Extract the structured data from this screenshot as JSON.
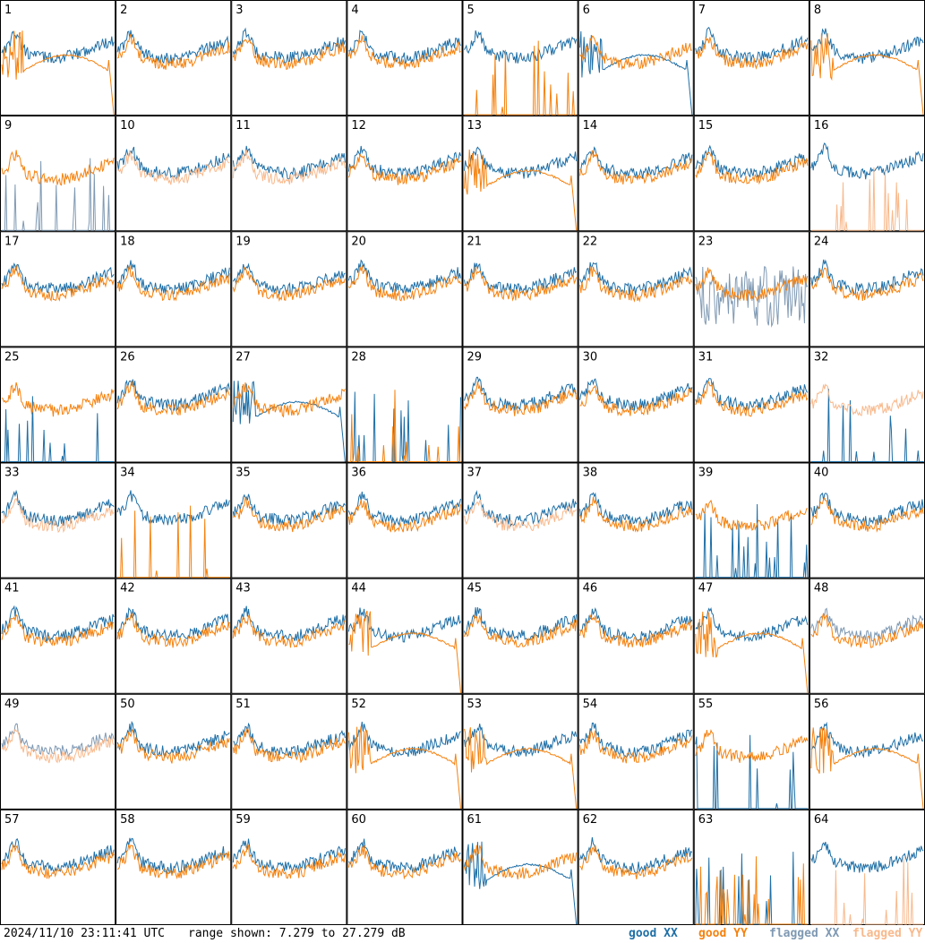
{
  "panels": [
    {
      "num": "1",
      "xx": "good",
      "yy": "good",
      "xx_shape": "ripple",
      "yy_shape": "loss"
    },
    {
      "num": "2",
      "xx": "good",
      "yy": "good",
      "xx_shape": "ripple",
      "yy_shape": "ripple"
    },
    {
      "num": "3",
      "xx": "good",
      "yy": "good",
      "xx_shape": "ripple",
      "yy_shape": "ripple"
    },
    {
      "num": "4",
      "xx": "good",
      "yy": "good",
      "xx_shape": "ripple",
      "yy_shape": "ripple"
    },
    {
      "num": "5",
      "xx": "good",
      "yy": "good",
      "xx_shape": "ripple",
      "yy_shape": "spikes"
    },
    {
      "num": "6",
      "xx": "good",
      "yy": "good",
      "xx_shape": "loss",
      "yy_shape": "ripple"
    },
    {
      "num": "7",
      "xx": "good",
      "yy": "good",
      "xx_shape": "ripple",
      "yy_shape": "ripple"
    },
    {
      "num": "8",
      "xx": "good",
      "yy": "good",
      "xx_shape": "ripple",
      "yy_shape": "loss"
    },
    {
      "num": "9",
      "xx": "flagged",
      "yy": "good",
      "xx_shape": "spikes",
      "yy_shape": "ripple"
    },
    {
      "num": "10",
      "xx": "good",
      "yy": "flagged",
      "xx_shape": "ripple",
      "yy_shape": "ripple"
    },
    {
      "num": "11",
      "xx": "good",
      "yy": "flagged",
      "xx_shape": "ripple",
      "yy_shape": "ripple"
    },
    {
      "num": "12",
      "xx": "good",
      "yy": "good",
      "xx_shape": "ripple",
      "yy_shape": "ripple"
    },
    {
      "num": "13",
      "xx": "good",
      "yy": "good",
      "xx_shape": "ripple",
      "yy_shape": "loss"
    },
    {
      "num": "14",
      "xx": "good",
      "yy": "good",
      "xx_shape": "ripple",
      "yy_shape": "ripple"
    },
    {
      "num": "15",
      "xx": "good",
      "yy": "good",
      "xx_shape": "ripple",
      "yy_shape": "ripple"
    },
    {
      "num": "16",
      "xx": "good",
      "yy": "flagged",
      "xx_shape": "ripple",
      "yy_shape": "spikes"
    },
    {
      "num": "17",
      "xx": "good",
      "yy": "good",
      "xx_shape": "ripple",
      "yy_shape": "ripple"
    },
    {
      "num": "18",
      "xx": "good",
      "yy": "good",
      "xx_shape": "ripple",
      "yy_shape": "ripple"
    },
    {
      "num": "19",
      "xx": "good",
      "yy": "good",
      "xx_shape": "ripple",
      "yy_shape": "ripple"
    },
    {
      "num": "20",
      "xx": "good",
      "yy": "good",
      "xx_shape": "ripple",
      "yy_shape": "ripple"
    },
    {
      "num": "21",
      "xx": "good",
      "yy": "good",
      "xx_shape": "ripple",
      "yy_shape": "ripple"
    },
    {
      "num": "22",
      "xx": "good",
      "yy": "good",
      "xx_shape": "ripple",
      "yy_shape": "ripple"
    },
    {
      "num": "23",
      "xx": "flagged",
      "yy": "good",
      "xx_shape": "noisy",
      "yy_shape": "ripple"
    },
    {
      "num": "24",
      "xx": "good",
      "yy": "good",
      "xx_shape": "ripple",
      "yy_shape": "ripple"
    },
    {
      "num": "25",
      "xx": "good",
      "yy": "good",
      "xx_shape": "spikes",
      "yy_shape": "ripple"
    },
    {
      "num": "26",
      "xx": "good",
      "yy": "good",
      "xx_shape": "ripple",
      "yy_shape": "ripple"
    },
    {
      "num": "27",
      "xx": "good",
      "yy": "good",
      "xx_shape": "loss",
      "yy_shape": "ripple"
    },
    {
      "num": "28",
      "xx": "good",
      "yy": "good",
      "xx_shape": "spikes",
      "yy_shape": "spikes"
    },
    {
      "num": "29",
      "xx": "good",
      "yy": "good",
      "xx_shape": "ripple",
      "yy_shape": "ripple"
    },
    {
      "num": "30",
      "xx": "good",
      "yy": "good",
      "xx_shape": "ripple",
      "yy_shape": "ripple"
    },
    {
      "num": "31",
      "xx": "good",
      "yy": "good",
      "xx_shape": "ripple",
      "yy_shape": "ripple"
    },
    {
      "num": "32",
      "xx": "good",
      "yy": "flagged",
      "xx_shape": "spikes",
      "yy_shape": "ripple"
    },
    {
      "num": "33",
      "xx": "good",
      "yy": "flagged",
      "xx_shape": "ripple",
      "yy_shape": "ripple"
    },
    {
      "num": "34",
      "xx": "good",
      "yy": "good",
      "xx_shape": "ripple",
      "yy_shape": "spikes"
    },
    {
      "num": "35",
      "xx": "good",
      "yy": "good",
      "xx_shape": "ripple",
      "yy_shape": "ripple"
    },
    {
      "num": "36",
      "xx": "good",
      "yy": "good",
      "xx_shape": "ripple",
      "yy_shape": "ripple"
    },
    {
      "num": "37",
      "xx": "good",
      "yy": "flagged",
      "xx_shape": "ripple",
      "yy_shape": "ripple"
    },
    {
      "num": "38",
      "xx": "good",
      "yy": "good",
      "xx_shape": "ripple",
      "yy_shape": "ripple"
    },
    {
      "num": "39",
      "xx": "good",
      "yy": "good",
      "xx_shape": "spikes",
      "yy_shape": "ripple"
    },
    {
      "num": "40",
      "xx": "good",
      "yy": "good",
      "xx_shape": "ripple",
      "yy_shape": "ripple"
    },
    {
      "num": "41",
      "xx": "good",
      "yy": "good",
      "xx_shape": "ripple",
      "yy_shape": "ripple"
    },
    {
      "num": "42",
      "xx": "good",
      "yy": "good",
      "xx_shape": "ripple",
      "yy_shape": "ripple"
    },
    {
      "num": "43",
      "xx": "good",
      "yy": "good",
      "xx_shape": "ripple",
      "yy_shape": "ripple"
    },
    {
      "num": "44",
      "xx": "good",
      "yy": "good",
      "xx_shape": "ripple",
      "yy_shape": "loss"
    },
    {
      "num": "45",
      "xx": "good",
      "yy": "good",
      "xx_shape": "ripple",
      "yy_shape": "ripple"
    },
    {
      "num": "46",
      "xx": "good",
      "yy": "good",
      "xx_shape": "ripple",
      "yy_shape": "ripple"
    },
    {
      "num": "47",
      "xx": "good",
      "yy": "good",
      "xx_shape": "ripple",
      "yy_shape": "loss"
    },
    {
      "num": "48",
      "xx": "flagged",
      "yy": "good",
      "xx_shape": "ripple",
      "yy_shape": "ripple"
    },
    {
      "num": "49",
      "xx": "flagged",
      "yy": "flagged",
      "xx_shape": "ripple",
      "yy_shape": "ripple"
    },
    {
      "num": "50",
      "xx": "good",
      "yy": "good",
      "xx_shape": "ripple",
      "yy_shape": "ripple"
    },
    {
      "num": "51",
      "xx": "good",
      "yy": "good",
      "xx_shape": "ripple",
      "yy_shape": "ripple"
    },
    {
      "num": "52",
      "xx": "good",
      "yy": "good",
      "xx_shape": "ripple",
      "yy_shape": "loss"
    },
    {
      "num": "53",
      "xx": "good",
      "yy": "good",
      "xx_shape": "ripple",
      "yy_shape": "loss"
    },
    {
      "num": "54",
      "xx": "good",
      "yy": "good",
      "xx_shape": "ripple",
      "yy_shape": "ripple"
    },
    {
      "num": "55",
      "xx": "good",
      "yy": "good",
      "xx_shape": "spikes",
      "yy_shape": "ripple"
    },
    {
      "num": "56",
      "xx": "good",
      "yy": "good",
      "xx_shape": "ripple",
      "yy_shape": "loss"
    },
    {
      "num": "57",
      "xx": "good",
      "yy": "good",
      "xx_shape": "ripple",
      "yy_shape": "ripple"
    },
    {
      "num": "58",
      "xx": "good",
      "yy": "good",
      "xx_shape": "ripple",
      "yy_shape": "ripple"
    },
    {
      "num": "59",
      "xx": "good",
      "yy": "good",
      "xx_shape": "ripple",
      "yy_shape": "ripple"
    },
    {
      "num": "60",
      "xx": "good",
      "yy": "good",
      "xx_shape": "ripple",
      "yy_shape": "ripple"
    },
    {
      "num": "61",
      "xx": "good",
      "yy": "good",
      "xx_shape": "loss",
      "yy_shape": "ripple"
    },
    {
      "num": "62",
      "xx": "good",
      "yy": "good",
      "xx_shape": "ripple",
      "yy_shape": "ripple"
    },
    {
      "num": "63",
      "xx": "good",
      "yy": "good",
      "xx_shape": "spikes",
      "yy_shape": "spikes"
    },
    {
      "num": "64",
      "xx": "good",
      "yy": "flagged",
      "xx_shape": "ripple",
      "yy_shape": "spikes"
    }
  ],
  "footer": {
    "timestamp": "2024/11/10 23:11:41 UTC",
    "range": "range shown: 7.279 to 27.279 dB"
  },
  "legend": {
    "good_xx": "good XX",
    "good_yy": "good YY",
    "flagged_xx": "flagged XX",
    "flagged_yy": "flagged YY"
  },
  "colors": {
    "good_xx": "#1f6fa6",
    "good_yy": "#f5820f",
    "flagged_xx": "#7f99b3",
    "flagged_yy": "#f8b98c",
    "grid_lines": "#000000"
  }
}
